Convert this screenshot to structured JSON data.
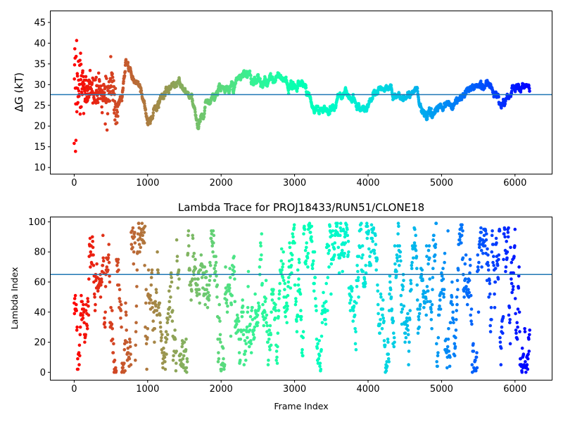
{
  "chart_data": [
    {
      "type": "scatter",
      "title": "",
      "xlabel": "",
      "ylabel": "ΔG (kT)",
      "xlim": [
        -320,
        6500
      ],
      "ylim": [
        8.5,
        47.7
      ],
      "xticks": [
        0,
        1000,
        2000,
        3000,
        4000,
        5000,
        6000
      ],
      "yticks": [
        10,
        15,
        20,
        25,
        30,
        35,
        40,
        45
      ],
      "hline": 27.6,
      "hline_color": "#1f77b4",
      "colormap": "rainbow_r",
      "grid": false,
      "frames_max": 6200,
      "trace_anchors": [
        [
          0,
          28
        ],
        [
          60,
          30
        ],
        [
          150,
          30
        ],
        [
          300,
          28
        ],
        [
          450,
          28
        ],
        [
          520,
          31
        ],
        [
          560,
          24
        ],
        [
          650,
          27
        ],
        [
          700,
          35
        ],
        [
          780,
          33
        ],
        [
          850,
          31
        ],
        [
          920,
          28
        ],
        [
          1000,
          21
        ],
        [
          1100,
          24
        ],
        [
          1250,
          29
        ],
        [
          1400,
          30
        ],
        [
          1500,
          29
        ],
        [
          1600,
          28
        ],
        [
          1660,
          21
        ],
        [
          1700,
          20
        ],
        [
          1800,
          26
        ],
        [
          1900,
          27
        ],
        [
          2000,
          29
        ],
        [
          2100,
          29
        ],
        [
          2200,
          30
        ],
        [
          2350,
          33
        ],
        [
          2450,
          31
        ],
        [
          2550,
          31
        ],
        [
          2650,
          31
        ],
        [
          2800,
          32
        ],
        [
          2950,
          29
        ],
        [
          3100,
          30
        ],
        [
          3200,
          26
        ],
        [
          3300,
          24
        ],
        [
          3500,
          24
        ],
        [
          3600,
          27
        ],
        [
          3700,
          28
        ],
        [
          3800,
          27
        ],
        [
          3900,
          24
        ],
        [
          4000,
          25
        ],
        [
          4100,
          27
        ],
        [
          4250,
          30
        ],
        [
          4350,
          27
        ],
        [
          4500,
          27
        ],
        [
          4650,
          29
        ],
        [
          4750,
          23
        ],
        [
          4800,
          22
        ],
        [
          5000,
          25
        ],
        [
          5200,
          26
        ],
        [
          5300,
          28
        ],
        [
          5450,
          29
        ],
        [
          5600,
          31
        ],
        [
          5750,
          27
        ],
        [
          5820,
          25
        ],
        [
          5950,
          28
        ],
        [
          6100,
          30
        ],
        [
          6200,
          28.5
        ]
      ]
    },
    {
      "type": "scatter",
      "title": "Lambda Trace for PROJ18433/RUN51/CLONE18",
      "xlabel": "Frame Index",
      "ylabel": "Lambda Index",
      "xlim": [
        -320,
        6500
      ],
      "ylim": [
        -5,
        103
      ],
      "xticks": [
        0,
        1000,
        2000,
        3000,
        4000,
        5000,
        6000
      ],
      "yticks": [
        0,
        20,
        40,
        60,
        80,
        100
      ],
      "hline": 65,
      "hline_color": "#1f77b4",
      "colormap": "rainbow_r",
      "grid": false,
      "lambda_range": [
        0,
        99
      ],
      "frames_max": 6200
    }
  ]
}
